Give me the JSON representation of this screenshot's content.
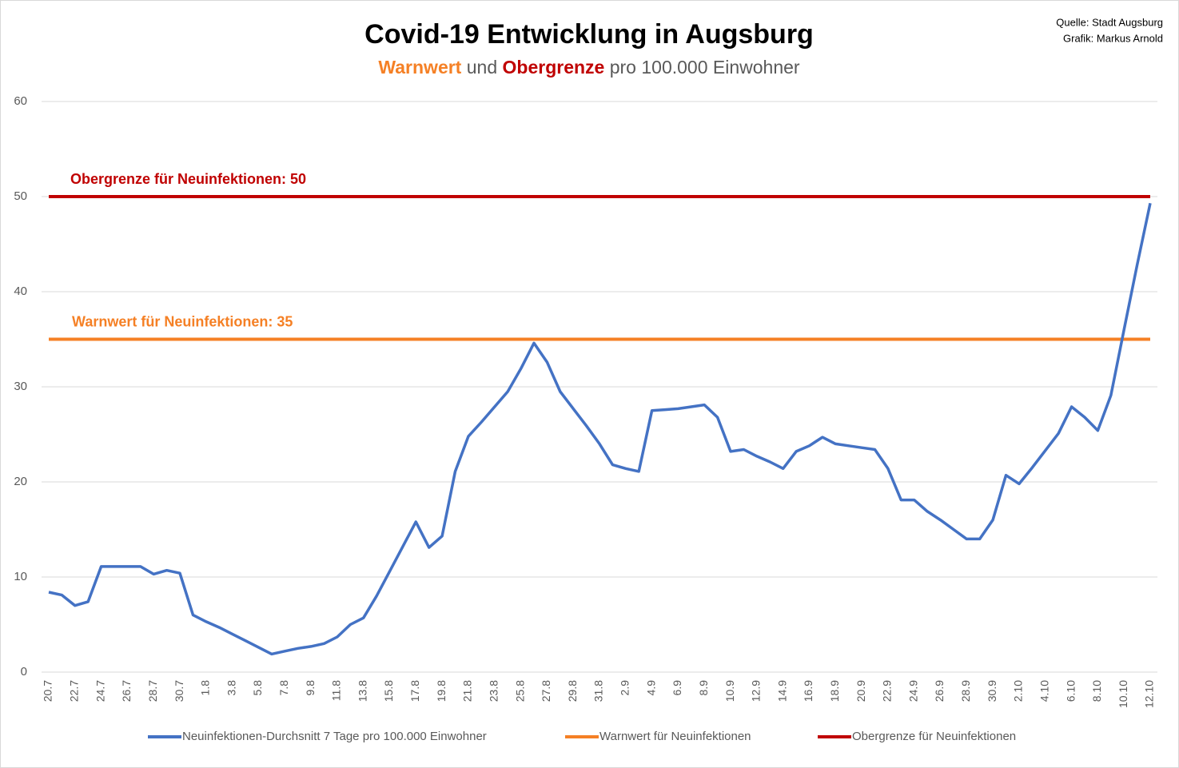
{
  "chart_data": {
    "type": "line",
    "title": "Covid-19 Entwicklung in Augsburg",
    "subtitle": [
      {
        "text": "Warnwert",
        "color": "#f58025"
      },
      {
        "text": "und",
        "color": "#595959"
      },
      {
        "text": "Obergrenze",
        "color": "#c00000"
      },
      {
        "text": "pro 100.000 Einwohner",
        "color": "#595959"
      }
    ],
    "source": [
      "Quelle: Stadt Augsburg",
      "Grafik: Markus Arnold"
    ],
    "annotations": [
      {
        "text": "Obergrenze für Neuinfektionen: 50",
        "color": "#c00000",
        "y": 50
      },
      {
        "text": "Warnwert für Neuinfektionen: 35",
        "color": "#f58025",
        "y": 35
      }
    ],
    "categories": [
      "20.7",
      null,
      "22.7",
      null,
      "24.7",
      null,
      "26.7",
      null,
      "28.7",
      null,
      "30.7",
      null,
      "1.8",
      null,
      "3.8",
      null,
      "5.8",
      null,
      "7.8",
      null,
      "9.8",
      null,
      "11.8",
      null,
      "13.8",
      null,
      "15.8",
      null,
      "17.8",
      null,
      "19.8",
      null,
      "21.8",
      null,
      "23.8",
      null,
      "25.8",
      null,
      "27.8",
      null,
      "29.8",
      null,
      "31.8",
      null,
      "2.9",
      null,
      "4.9",
      null,
      "6.9",
      null,
      "8.9",
      null,
      "10.9",
      null,
      "12.9",
      null,
      "14.9",
      null,
      "16.9",
      null,
      "18.9",
      null,
      "20.9",
      null,
      "22.9",
      null,
      "24.9",
      null,
      "26.9",
      null,
      "28.9",
      null,
      "30.9",
      null,
      "2.10",
      null,
      "4.10",
      null,
      "6.10",
      null,
      "8.10",
      null,
      "10.10",
      null,
      "12.10"
    ],
    "series": [
      {
        "name": "Neuinfektionen-Durchsnitt 7 Tage pro 100.000 Einwohner",
        "color": "#4472c4",
        "values": [
          8.4,
          8.1,
          7.0,
          7.4,
          11.1,
          11.1,
          11.1,
          11.1,
          10.3,
          10.7,
          10.4,
          6.0,
          5.3,
          4.7,
          4.0,
          3.3,
          2.6,
          1.9,
          2.2,
          2.5,
          2.7,
          3.0,
          3.7,
          5.0,
          5.7,
          8.0,
          10.6,
          13.2,
          15.8,
          13.1,
          14.3,
          21.1,
          24.8,
          26.3,
          27.9,
          29.5,
          31.9,
          34.6,
          32.6,
          29.5,
          27.7,
          25.9,
          24.0,
          21.8,
          21.4,
          21.1,
          27.5,
          27.6,
          27.7,
          27.9,
          28.1,
          26.8,
          23.2,
          23.4,
          22.7,
          22.1,
          21.4,
          23.2,
          23.8,
          24.7,
          24.0,
          23.8,
          23.6,
          23.4,
          21.4,
          18.1,
          18.1,
          16.9,
          16.0,
          15.0,
          14.0,
          14.0,
          16.0,
          20.7,
          19.8,
          21.5,
          23.3,
          25.1,
          27.9,
          26.8,
          25.4,
          29.1,
          36.0,
          42.8,
          49.3
        ]
      },
      {
        "name": "Warnwert für Neuinfektionen",
        "color": "#f58025",
        "values": [
          35,
          35,
          35,
          35,
          35,
          35,
          35,
          35,
          35,
          35,
          35,
          35,
          35,
          35,
          35,
          35,
          35,
          35,
          35,
          35,
          35,
          35,
          35,
          35,
          35,
          35,
          35,
          35,
          35,
          35,
          35,
          35,
          35,
          35,
          35,
          35,
          35,
          35,
          35,
          35,
          35,
          35,
          35,
          35,
          35,
          35,
          35,
          35,
          35,
          35,
          35,
          35,
          35,
          35,
          35,
          35,
          35,
          35,
          35,
          35,
          35,
          35,
          35,
          35,
          35,
          35,
          35,
          35,
          35,
          35,
          35,
          35,
          35,
          35,
          35,
          35,
          35,
          35,
          35,
          35,
          35,
          35,
          35,
          35,
          35
        ]
      },
      {
        "name": "Obergrenze für Neuinfektionen",
        "color": "#c00000",
        "values": [
          50,
          50,
          50,
          50,
          50,
          50,
          50,
          50,
          50,
          50,
          50,
          50,
          50,
          50,
          50,
          50,
          50,
          50,
          50,
          50,
          50,
          50,
          50,
          50,
          50,
          50,
          50,
          50,
          50,
          50,
          50,
          50,
          50,
          50,
          50,
          50,
          50,
          50,
          50,
          50,
          50,
          50,
          50,
          50,
          50,
          50,
          50,
          50,
          50,
          50,
          50,
          50,
          50,
          50,
          50,
          50,
          50,
          50,
          50,
          50,
          50,
          50,
          50,
          50,
          50,
          50,
          50,
          50,
          50,
          50,
          50,
          50,
          50,
          50,
          50,
          50,
          50,
          50,
          50,
          50,
          50,
          50,
          50,
          50,
          50
        ]
      }
    ],
    "ylim": [
      0,
      60
    ],
    "yticks": [
      0,
      10,
      20,
      30,
      40,
      50,
      60
    ],
    "grid": true
  }
}
